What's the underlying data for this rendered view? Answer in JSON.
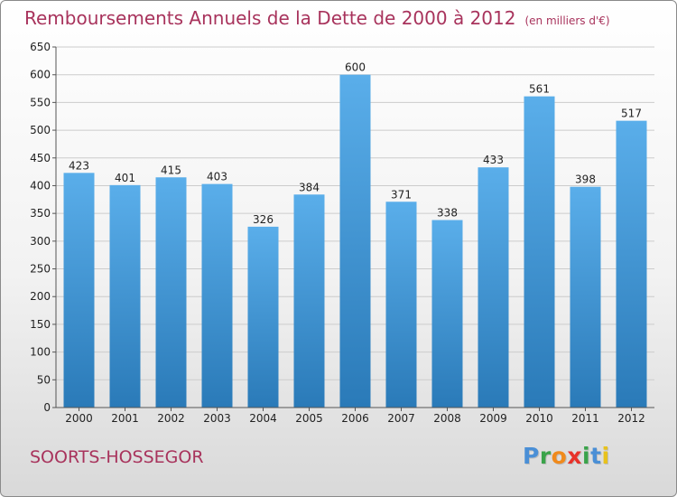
{
  "chart_data": {
    "type": "bar",
    "title": "Remboursements Annuels de la Dette de 2000 à 2012",
    "unit_note": "(en milliers d'€)",
    "categories": [
      "2000",
      "2001",
      "2002",
      "2003",
      "2004",
      "2005",
      "2006",
      "2007",
      "2008",
      "2009",
      "2010",
      "2011",
      "2012"
    ],
    "values": [
      423,
      401,
      415,
      403,
      326,
      384,
      600,
      371,
      338,
      433,
      561,
      398,
      517
    ],
    "ylim": [
      0,
      650
    ],
    "yticks": [
      0,
      50,
      100,
      150,
      200,
      250,
      300,
      350,
      400,
      450,
      500,
      550,
      600,
      650
    ],
    "grid": true,
    "bar_color_top": "#5aaeea",
    "bar_color_bottom": "#2a7ab8"
  },
  "footer": {
    "commune": "SOORTS-HOSSEGOR",
    "logo_letters": [
      "P",
      "r",
      "o",
      "x",
      "i",
      "t",
      "i"
    ],
    "logo_colors": [
      "#4a8fd6",
      "#3aa34a",
      "#f08a1c",
      "#e8322a",
      "#3aa34a",
      "#4a8fd6",
      "#e8c21c"
    ]
  },
  "colors": {
    "title": "#a8335c",
    "grid": "#cccccc"
  }
}
